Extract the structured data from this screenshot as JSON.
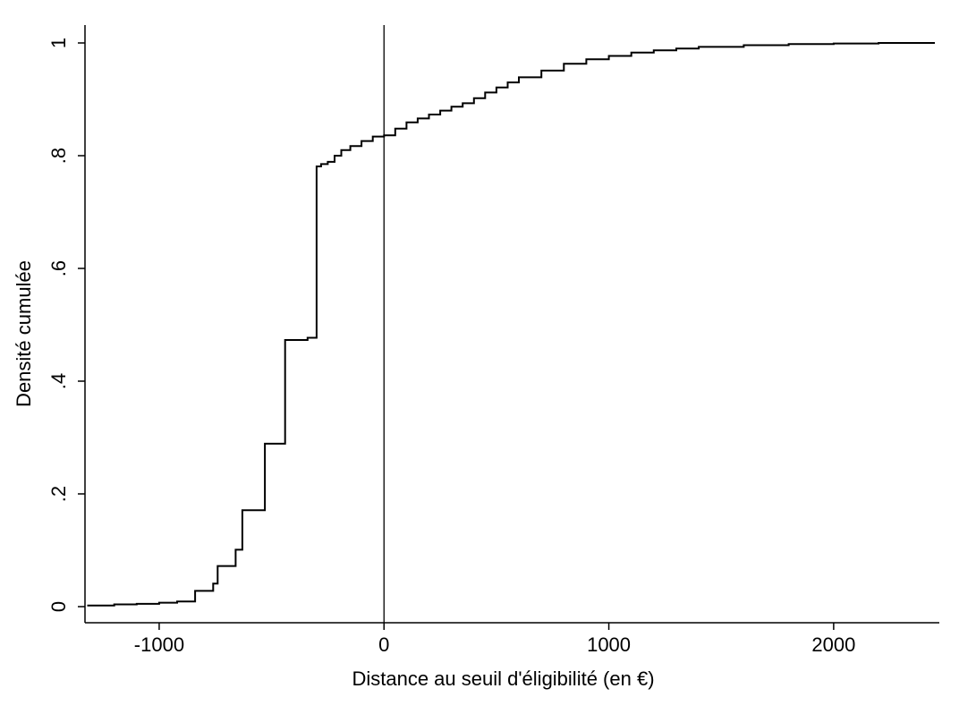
{
  "chart_data": {
    "type": "line",
    "step": true,
    "title": "",
    "xlabel": "Distance au seuil d'éligibilité (en €)",
    "ylabel": "Densité cumulée",
    "xlim": [
      -1330,
      2470
    ],
    "ylim": [
      0,
      1
    ],
    "xticks": [
      {
        "value": -1000,
        "label": "-1000"
      },
      {
        "value": 0,
        "label": "0"
      },
      {
        "value": 1000,
        "label": "1000"
      },
      {
        "value": 2000,
        "label": "2000"
      }
    ],
    "yticks": [
      {
        "value": 0,
        "label": "0"
      },
      {
        "value": 0.2,
        "label": ".2"
      },
      {
        "value": 0.4,
        "label": ".4"
      },
      {
        "value": 0.6,
        "label": ".6"
      },
      {
        "value": 0.8,
        "label": ".8"
      },
      {
        "value": 1,
        "label": "1"
      }
    ],
    "reference_lines": [
      {
        "axis": "x",
        "value": 0
      }
    ],
    "grid": false,
    "legend": "none",
    "series": [
      {
        "color": "#000000",
        "points": [
          [
            -1320,
            0.002
          ],
          [
            -1200,
            0.004
          ],
          [
            -1100,
            0.005
          ],
          [
            -1000,
            0.007
          ],
          [
            -920,
            0.009
          ],
          [
            -840,
            0.011
          ],
          [
            -840,
            0.028
          ],
          [
            -760,
            0.028
          ],
          [
            -760,
            0.041
          ],
          [
            -740,
            0.041
          ],
          [
            -740,
            0.072
          ],
          [
            -660,
            0.072
          ],
          [
            -660,
            0.101
          ],
          [
            -630,
            0.101
          ],
          [
            -630,
            0.171
          ],
          [
            -530,
            0.171
          ],
          [
            -530,
            0.289
          ],
          [
            -440,
            0.289
          ],
          [
            -440,
            0.473
          ],
          [
            -370,
            0.473
          ],
          [
            -340,
            0.477
          ],
          [
            -300,
            0.479
          ],
          [
            -300,
            0.781
          ],
          [
            -280,
            0.785
          ],
          [
            -250,
            0.789
          ],
          [
            -220,
            0.8
          ],
          [
            -190,
            0.81
          ],
          [
            -150,
            0.817
          ],
          [
            -100,
            0.826
          ],
          [
            -50,
            0.834
          ],
          [
            0,
            0.836
          ],
          [
            50,
            0.848
          ],
          [
            100,
            0.859
          ],
          [
            150,
            0.866
          ],
          [
            200,
            0.873
          ],
          [
            250,
            0.88
          ],
          [
            300,
            0.887
          ],
          [
            350,
            0.893
          ],
          [
            400,
            0.902
          ],
          [
            450,
            0.912
          ],
          [
            500,
            0.921
          ],
          [
            550,
            0.93
          ],
          [
            600,
            0.939
          ],
          [
            700,
            0.951
          ],
          [
            800,
            0.963
          ],
          [
            900,
            0.971
          ],
          [
            1000,
            0.977
          ],
          [
            1100,
            0.983
          ],
          [
            1200,
            0.987
          ],
          [
            1300,
            0.99
          ],
          [
            1400,
            0.993
          ],
          [
            1600,
            0.996
          ],
          [
            1800,
            0.998
          ],
          [
            2000,
            0.999
          ],
          [
            2200,
            1.0
          ],
          [
            2450,
            1.0
          ]
        ]
      }
    ]
  }
}
